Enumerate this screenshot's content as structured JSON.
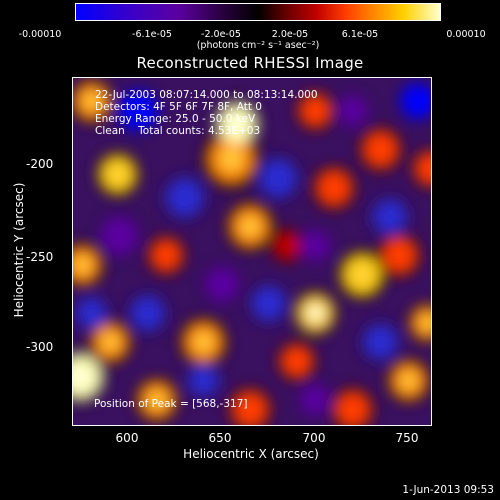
{
  "colorbar": {
    "ticks": [
      "-0.00010",
      "-6.1e-05",
      "-2.0e-05",
      "2.0e-05",
      "6.1e-05",
      "0.00010"
    ],
    "unit": "(photons cm⁻² s⁻¹ asec⁻²)"
  },
  "chart_data": {
    "type": "heatmap",
    "title": "Reconstructed RHESSI Image",
    "xlabel": "Heliocentric X (arcsec)",
    "ylabel": "Heliocentric Y (arcsec)",
    "xlim": [
      570,
      762
    ],
    "ylim": [
      -343,
      -163
    ],
    "x_ticks": [
      "600",
      "650",
      "700",
      "750"
    ],
    "y_ticks": [
      "-200",
      "-250",
      "-300"
    ],
    "colorscale": [
      "#0000ff",
      "#5a00a0",
      "#000000",
      "#c00000",
      "#ff8a00",
      "#ffffcc"
    ],
    "zlim": [
      -0.0001,
      0.0001
    ],
    "peak": [
      568,
      -317
    ],
    "blobs": [
      {
        "x": 658,
        "y": -187,
        "v": 1.0,
        "r": 10
      },
      {
        "x": 655,
        "y": -205,
        "v": 0.7,
        "r": 12
      },
      {
        "x": 580,
        "y": -175,
        "v": 0.6,
        "r": 9
      },
      {
        "x": 594,
        "y": -213,
        "v": 0.75,
        "r": 9
      },
      {
        "x": 575,
        "y": -260,
        "v": 0.65,
        "r": 9
      },
      {
        "x": 574,
        "y": -318,
        "v": 0.9,
        "r": 11
      },
      {
        "x": 590,
        "y": -300,
        "v": 0.6,
        "r": 9
      },
      {
        "x": 620,
        "y": -255,
        "v": 0.5,
        "r": 8
      },
      {
        "x": 665,
        "y": -240,
        "v": 0.6,
        "r": 10
      },
      {
        "x": 640,
        "y": -300,
        "v": 0.7,
        "r": 10
      },
      {
        "x": 615,
        "y": -330,
        "v": 0.65,
        "r": 9
      },
      {
        "x": 665,
        "y": -335,
        "v": 0.55,
        "r": 9
      },
      {
        "x": 690,
        "y": -310,
        "v": 0.5,
        "r": 8
      },
      {
        "x": 700,
        "y": -285,
        "v": 0.85,
        "r": 9
      },
      {
        "x": 725,
        "y": -265,
        "v": 0.75,
        "r": 10
      },
      {
        "x": 745,
        "y": -255,
        "v": 0.55,
        "r": 9
      },
      {
        "x": 760,
        "y": -290,
        "v": 0.6,
        "r": 8
      },
      {
        "x": 750,
        "y": -320,
        "v": 0.65,
        "r": 9
      },
      {
        "x": 720,
        "y": -335,
        "v": 0.55,
        "r": 9
      },
      {
        "x": 710,
        "y": -220,
        "v": 0.5,
        "r": 9
      },
      {
        "x": 735,
        "y": -200,
        "v": 0.55,
        "r": 9
      },
      {
        "x": 762,
        "y": -210,
        "v": 0.5,
        "r": 8
      },
      {
        "x": 700,
        "y": -180,
        "v": 0.5,
        "r": 8
      },
      {
        "x": 685,
        "y": -250,
        "v": 0.45,
        "r": 7
      },
      {
        "x": 605,
        "y": -180,
        "v": -0.7,
        "r": 10
      },
      {
        "x": 595,
        "y": -245,
        "v": -0.5,
        "r": 10
      },
      {
        "x": 630,
        "y": -225,
        "v": -0.6,
        "r": 10
      },
      {
        "x": 610,
        "y": -285,
        "v": -0.55,
        "r": 9
      },
      {
        "x": 680,
        "y": -215,
        "v": -0.6,
        "r": 10
      },
      {
        "x": 700,
        "y": -250,
        "v": -0.4,
        "r": 8
      },
      {
        "x": 740,
        "y": -235,
        "v": -0.6,
        "r": 9
      },
      {
        "x": 755,
        "y": -175,
        "v": -0.8,
        "r": 9
      },
      {
        "x": 675,
        "y": -280,
        "v": -0.55,
        "r": 9
      },
      {
        "x": 640,
        "y": -320,
        "v": -0.55,
        "r": 8
      },
      {
        "x": 700,
        "y": -330,
        "v": -0.5,
        "r": 8
      },
      {
        "x": 735,
        "y": -300,
        "v": -0.55,
        "r": 9
      },
      {
        "x": 580,
        "y": -285,
        "v": -0.55,
        "r": 8
      },
      {
        "x": 650,
        "y": -270,
        "v": -0.4,
        "r": 9
      },
      {
        "x": 720,
        "y": -180,
        "v": -0.45,
        "r": 8
      }
    ]
  },
  "info": {
    "time_range": "22-Jul-2003 08:07:14.000 to 08:13:14.000",
    "detectors": "Detectors: 4F 5F 6F 7F 8F, Att 0",
    "energy": "Energy Range: 25.0 - 50.0 keV",
    "clean": "Clean    Total counts: 4.53E+03",
    "peak": "Position of Peak = [568,-317]"
  },
  "footer": "1-Jun-2013 09:53"
}
